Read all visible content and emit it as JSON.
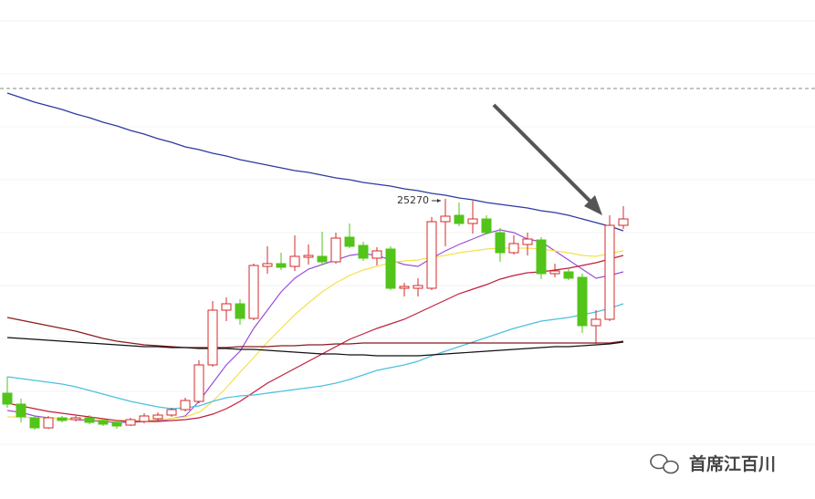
{
  "chart_data": {
    "type": "candlestick",
    "ylim": [
      24941,
      25488
    ],
    "up_color": "#d42a2a",
    "down_color": "#52c41a",
    "categories": [
      null,
      null,
      null,
      null,
      null,
      null,
      null,
      null,
      null,
      null,
      null,
      null,
      null,
      null,
      null,
      null,
      null,
      null,
      null,
      null,
      null,
      null,
      null,
      null,
      null,
      null,
      null,
      null,
      null,
      null,
      null,
      null,
      null,
      null,
      null,
      null,
      null,
      null,
      null,
      null,
      null,
      null,
      null,
      null,
      null,
      null
    ],
    "open": [
      25057,
      25045,
      25030,
      25019,
      25030,
      25028,
      25030,
      25027,
      25025,
      25022,
      25026,
      25029,
      25033,
      25039,
      25048,
      25088,
      25148,
      25155,
      25139,
      25196,
      25199,
      25196,
      25206,
      25207,
      25201,
      25228,
      25219,
      25205,
      25215,
      25172,
      25172,
      25172,
      25245,
      25252,
      25243,
      25248,
      25233,
      25211,
      25220,
      25225,
      25188,
      25190,
      25184,
      25131,
      25138,
      25241
    ],
    "high": [
      25075,
      25051,
      25032,
      25032,
      25032,
      25032,
      25033,
      25029,
      25027,
      25030,
      25035,
      25036,
      25041,
      25052,
      25093,
      25158,
      25162,
      25160,
      25199,
      25218,
      25211,
      25230,
      25220,
      25234,
      25233,
      25243,
      25223,
      25217,
      25218,
      25178,
      25183,
      25250,
      25270,
      25266,
      25268,
      25252,
      25238,
      25230,
      25233,
      25228,
      25199,
      25194,
      25188,
      25148,
      25252,
      25262
    ],
    "low": [
      25041,
      25025,
      25017,
      25018,
      25025,
      25026,
      25023,
      25021,
      25018,
      25021,
      25024,
      25026,
      25031,
      25037,
      25046,
      25086,
      25136,
      25132,
      25137,
      25188,
      25192,
      25191,
      25198,
      25198,
      25199,
      25216,
      25202,
      25197,
      25170,
      25163,
      25163,
      25170,
      25218,
      25240,
      25232,
      25231,
      25201,
      25209,
      25208,
      25182,
      25184,
      25181,
      25123,
      25109,
      25136,
      25237
    ],
    "close": [
      25045,
      25031,
      25019,
      25030,
      25027,
      25030,
      25025,
      25023,
      25021,
      25028,
      25032,
      25033,
      25039,
      25049,
      25088,
      25148,
      25155,
      25139,
      25197,
      25199,
      25195,
      25207,
      25208,
      25201,
      25227,
      25218,
      25205,
      25213,
      25172,
      25174,
      25175,
      25245,
      25251,
      25243,
      25248,
      25233,
      25211,
      25221,
      25226,
      25188,
      25191,
      25183,
      25131,
      25138,
      25241,
      25248
    ],
    "series": [
      {
        "color": "#2b3a9e",
        "values": [
          25386,
          25381,
          25376,
          25372,
          25368,
          25363,
          25359,
          25354,
          25350,
          25345,
          25341,
          25336,
          25332,
          25327,
          25324,
          25320,
          25317,
          25313,
          25310,
          25307,
          25304,
          25301,
          25299,
          25296,
          25293,
          25291,
          25288,
          25286,
          25284,
          25281,
          25279,
          25276,
          25274,
          25271,
          25269,
          25266,
          25264,
          25262,
          25260,
          25257,
          25255,
          25252,
          25248,
          25244,
          25240,
          25235
        ]
      },
      {
        "color": "#9b4fd6",
        "values": [
          25038,
          25036,
          25032,
          25030,
          25029,
          25028,
          25027,
          25026,
          25025,
          25025,
          25026,
          25027,
          25029,
          25032,
          25048,
          25068,
          25088,
          25103,
          25128,
          25148,
          25168,
          25183,
          25193,
          25198,
          25203,
          25208,
          25210,
          25208,
          25203,
          25198,
          25196,
          25205,
          25213,
          25220,
          25226,
          25232,
          25236,
          25233,
          25226,
          25223,
          25213,
          25203,
          25193,
          25183,
          25186,
          25190
        ]
      },
      {
        "color": "#f2e24a",
        "values": [
          25031,
          25031,
          25030,
          25030,
          25029,
          25029,
          25028,
          25028,
          25027,
          25027,
          25027,
          25028,
          25029,
          25031,
          25036,
          25048,
          25063,
          25080,
          25096,
          25113,
          25128,
          25143,
          25156,
          25168,
          25178,
          25186,
          25192,
          25196,
          25200,
          25202,
          25203,
          25206,
          25208,
          25211,
          25213,
          25215,
          25216,
          25216,
          25216,
          25215,
          25213,
          25211,
          25208,
          25207,
          25210,
          25213
        ]
      },
      {
        "color": "#c0203a",
        "values": [
          25046,
          25043,
          25040,
          25037,
          25035,
          25033,
          25031,
          25029,
          25027,
          25026,
          25026,
          25026,
          25027,
          25028,
          25030,
          25034,
          25040,
          25048,
          25058,
          25068,
          25076,
          25084,
          25092,
          25100,
          25108,
          25116,
          25122,
          25128,
          25133,
          25138,
          25145,
          25152,
          25159,
          25166,
          25171,
          25176,
          25182,
          25186,
          25189,
          25190,
          25192,
          25194,
          25197,
          25200,
          25204,
          25208
        ]
      },
      {
        "color": "#4cc1dc",
        "values": [
          25075,
          25073,
          25071,
          25069,
          25067,
          25064,
          25060,
          25056,
          25052,
          25048,
          25045,
          25042,
          25040,
          25041,
          25043,
          25048,
          25052,
          25054,
          25055,
          25057,
          25059,
          25061,
          25063,
          25065,
          25068,
          25072,
          25077,
          25082,
          25085,
          25088,
          25092,
          25098,
          25103,
          25108,
          25113,
          25118,
          25123,
          25128,
          25132,
          25136,
          25138,
          25140,
          25143,
          25146,
          25150,
          25155
        ]
      },
      {
        "color": "#8b1a1a",
        "values": [
          25140,
          25137,
          25134,
          25131,
          25128,
          25125,
          25121,
          25117,
          25114,
          25112,
          25110,
          25109,
          25108,
          25107,
          25107,
          25107,
          25107,
          25108,
          25108,
          25108,
          25109,
          25109,
          25110,
          25110,
          25111,
          25111,
          25112,
          25112,
          25112,
          25112,
          25112,
          25112,
          25112,
          25112,
          25112,
          25112,
          25112,
          25112,
          25112,
          25112,
          25112,
          25112,
          25112,
          25112,
          25112,
          25114
        ]
      },
      {
        "color": "#111111",
        "values": [
          25118,
          25117,
          25116,
          25115,
          25114,
          25113,
          25112,
          25111,
          25110,
          25109,
          25108,
          25108,
          25107,
          25107,
          25106,
          25106,
          25106,
          25105,
          25105,
          25104,
          25103,
          25102,
          25101,
          25100,
          25100,
          25099,
          25099,
          25098,
          25098,
          25098,
          25098,
          25099,
          25100,
          25101,
          25102,
          25103,
          25104,
          25105,
          25106,
          25107,
          25108,
          25108,
          25109,
          25110,
          25111,
          25113
        ]
      }
    ],
    "reference_line": {
      "value": 25391,
      "color": "#888888",
      "dashed": true
    },
    "annotations": [
      {
        "value": 25270
      }
    ]
  },
  "watermark": "首席江百川"
}
